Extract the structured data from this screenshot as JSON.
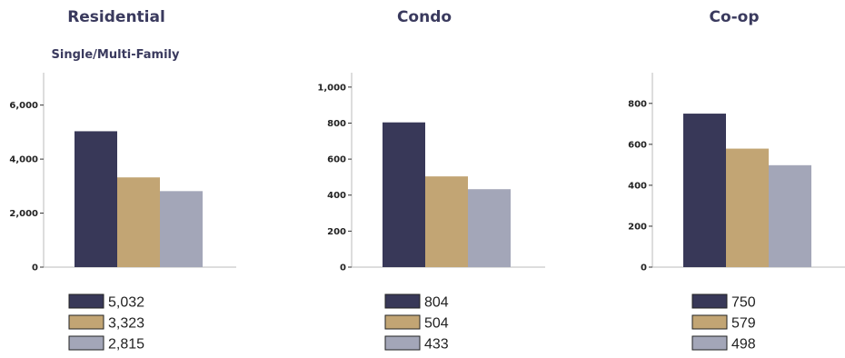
{
  "colors": {
    "series_1": "#383858",
    "series_2": "#c2a574",
    "series_3": "#a3a6b8",
    "axis": "#bbbbbb",
    "legend_border": "#222222"
  },
  "chart_data": [
    {
      "type": "bar",
      "title": "Residential",
      "subtitle": "Single/Multi-Family",
      "xlabel": "",
      "ylabel": "",
      "values": [
        5032,
        3323,
        2815
      ],
      "legend_labels": [
        "5,032",
        "3,323",
        "2,815"
      ],
      "ylim": [
        0,
        7200
      ],
      "yticks": [
        0,
        2000,
        4000,
        6000
      ],
      "ytick_labels": [
        "0",
        "2,000",
        "4,000",
        "6,000"
      ],
      "grid": false,
      "legend_placement": "bottom"
    },
    {
      "type": "bar",
      "title": "Condo",
      "subtitle": "",
      "xlabel": "",
      "ylabel": "",
      "values": [
        804,
        504,
        433
      ],
      "legend_labels": [
        "804",
        "504",
        "433"
      ],
      "ylim": [
        0,
        1080
      ],
      "yticks": [
        0,
        200,
        400,
        600,
        800,
        1000
      ],
      "ytick_labels": [
        "0",
        "200",
        "400",
        "600",
        "800",
        "1,000"
      ],
      "grid": false,
      "legend_placement": "bottom"
    },
    {
      "type": "bar",
      "title": "Co-op",
      "subtitle": "",
      "xlabel": "",
      "ylabel": "",
      "values": [
        750,
        579,
        498
      ],
      "legend_labels": [
        "750",
        "579",
        "498"
      ],
      "ylim": [
        0,
        950
      ],
      "yticks": [
        0,
        200,
        400,
        600,
        800
      ],
      "ytick_labels": [
        "0",
        "200",
        "400",
        "600",
        "800"
      ],
      "grid": false,
      "legend_placement": "bottom"
    }
  ]
}
